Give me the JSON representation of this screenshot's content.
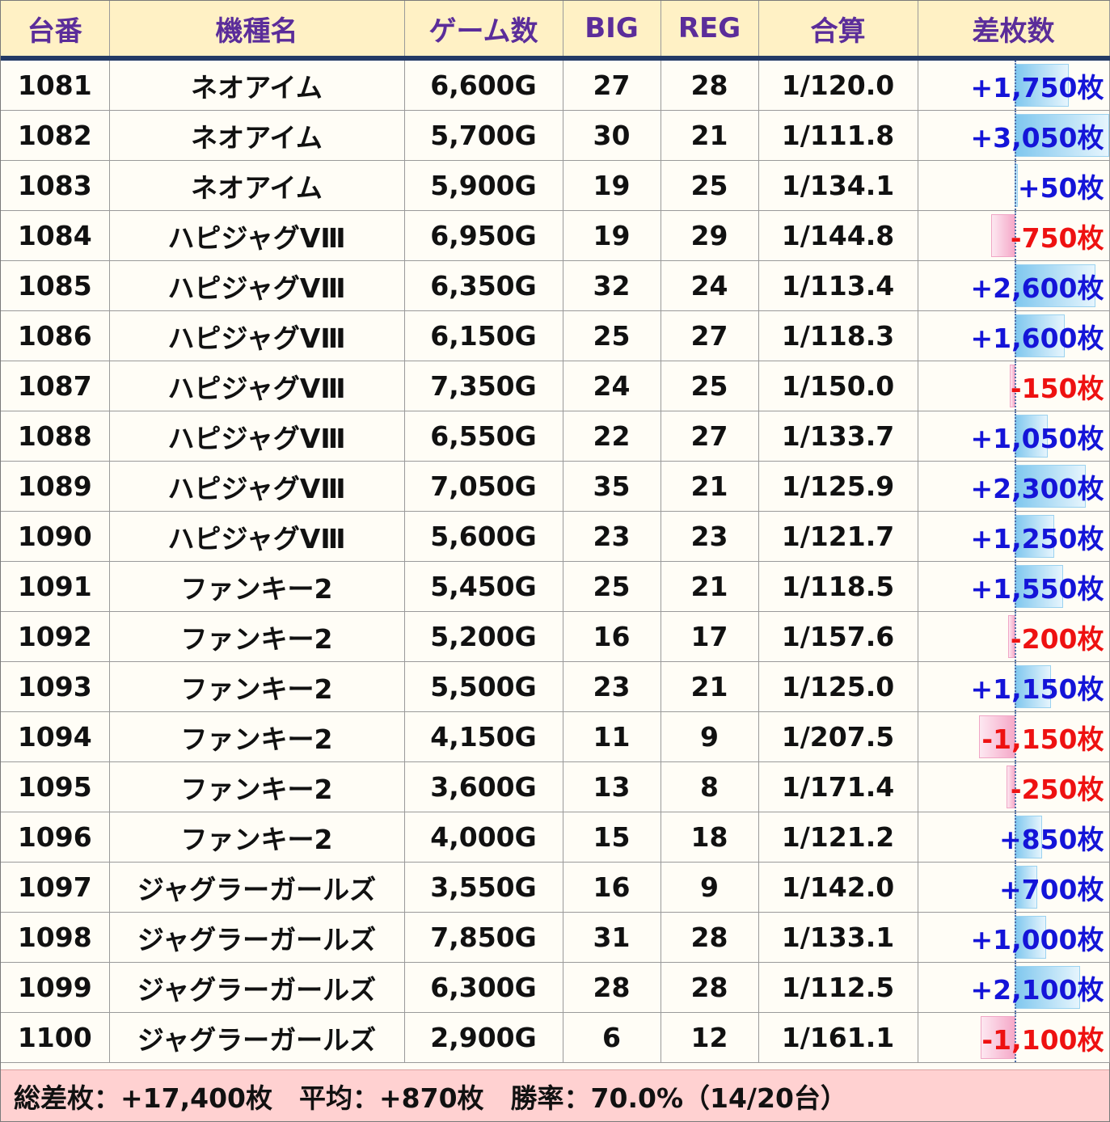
{
  "headers": {
    "machine_no": "台番",
    "model": "機種名",
    "games": "ゲーム数",
    "big": "BIG",
    "reg": "REG",
    "combined": "合算",
    "diff": "差枚数"
  },
  "colors": {
    "header_bg": "#fff1c5",
    "header_text": "#5b2d9a",
    "header_rule": "#233a66",
    "positive_text": "#1414d8",
    "negative_text": "#ee1111",
    "positive_bar": "#7fc7ee",
    "negative_bar": "#f5a8c8",
    "footer_bg": "#ffd1d1"
  },
  "rows": [
    {
      "no": "1081",
      "model": "ネオアイム",
      "games": "6,600G",
      "big": "27",
      "reg": "28",
      "combined": "1/120.0",
      "diff": "+1,750枚",
      "diff_value": 1750
    },
    {
      "no": "1082",
      "model": "ネオアイム",
      "games": "5,700G",
      "big": "30",
      "reg": "21",
      "combined": "1/111.8",
      "diff": "+3,050枚",
      "diff_value": 3050
    },
    {
      "no": "1083",
      "model": "ネオアイム",
      "games": "5,900G",
      "big": "19",
      "reg": "25",
      "combined": "1/134.1",
      "diff": "+50枚",
      "diff_value": 50
    },
    {
      "no": "1084",
      "model": "ハピジャグVⅢ",
      "games": "6,950G",
      "big": "19",
      "reg": "29",
      "combined": "1/144.8",
      "diff": "-750枚",
      "diff_value": -750
    },
    {
      "no": "1085",
      "model": "ハピジャグVⅢ",
      "games": "6,350G",
      "big": "32",
      "reg": "24",
      "combined": "1/113.4",
      "diff": "+2,600枚",
      "diff_value": 2600
    },
    {
      "no": "1086",
      "model": "ハピジャグVⅢ",
      "games": "6,150G",
      "big": "25",
      "reg": "27",
      "combined": "1/118.3",
      "diff": "+1,600枚",
      "diff_value": 1600
    },
    {
      "no": "1087",
      "model": "ハピジャグVⅢ",
      "games": "7,350G",
      "big": "24",
      "reg": "25",
      "combined": "1/150.0",
      "diff": "-150枚",
      "diff_value": -150
    },
    {
      "no": "1088",
      "model": "ハピジャグVⅢ",
      "games": "6,550G",
      "big": "22",
      "reg": "27",
      "combined": "1/133.7",
      "diff": "+1,050枚",
      "diff_value": 1050
    },
    {
      "no": "1089",
      "model": "ハピジャグVⅢ",
      "games": "7,050G",
      "big": "35",
      "reg": "21",
      "combined": "1/125.9",
      "diff": "+2,300枚",
      "diff_value": 2300
    },
    {
      "no": "1090",
      "model": "ハピジャグVⅢ",
      "games": "5,600G",
      "big": "23",
      "reg": "23",
      "combined": "1/121.7",
      "diff": "+1,250枚",
      "diff_value": 1250
    },
    {
      "no": "1091",
      "model": "ファンキー2",
      "games": "5,450G",
      "big": "25",
      "reg": "21",
      "combined": "1/118.5",
      "diff": "+1,550枚",
      "diff_value": 1550
    },
    {
      "no": "1092",
      "model": "ファンキー2",
      "games": "5,200G",
      "big": "16",
      "reg": "17",
      "combined": "1/157.6",
      "diff": "-200枚",
      "diff_value": -200
    },
    {
      "no": "1093",
      "model": "ファンキー2",
      "games": "5,500G",
      "big": "23",
      "reg": "21",
      "combined": "1/125.0",
      "diff": "+1,150枚",
      "diff_value": 1150
    },
    {
      "no": "1094",
      "model": "ファンキー2",
      "games": "4,150G",
      "big": "11",
      "reg": "9",
      "combined": "1/207.5",
      "diff": "-1,150枚",
      "diff_value": -1150
    },
    {
      "no": "1095",
      "model": "ファンキー2",
      "games": "3,600G",
      "big": "13",
      "reg": "8",
      "combined": "1/171.4",
      "diff": "-250枚",
      "diff_value": -250
    },
    {
      "no": "1096",
      "model": "ファンキー2",
      "games": "4,000G",
      "big": "15",
      "reg": "18",
      "combined": "1/121.2",
      "diff": "+850枚",
      "diff_value": 850
    },
    {
      "no": "1097",
      "model": "ジャグラーガールズ",
      "games": "3,550G",
      "big": "16",
      "reg": "9",
      "combined": "1/142.0",
      "diff": "+700枚",
      "diff_value": 700
    },
    {
      "no": "1098",
      "model": "ジャグラーガールズ",
      "games": "7,850G",
      "big": "31",
      "reg": "28",
      "combined": "1/133.1",
      "diff": "+1,000枚",
      "diff_value": 1000
    },
    {
      "no": "1099",
      "model": "ジャグラーガールズ",
      "games": "6,300G",
      "big": "28",
      "reg": "28",
      "combined": "1/112.5",
      "diff": "+2,100枚",
      "diff_value": 2100
    },
    {
      "no": "1100",
      "model": "ジャグラーガールズ",
      "games": "2,900G",
      "big": "6",
      "reg": "12",
      "combined": "1/161.1",
      "diff": "-1,100枚",
      "diff_value": -1100
    }
  ],
  "footer": {
    "summary": "総差枚：+17,400枚　平均：+870枚　勝率：70.0%（14/20台）"
  }
}
